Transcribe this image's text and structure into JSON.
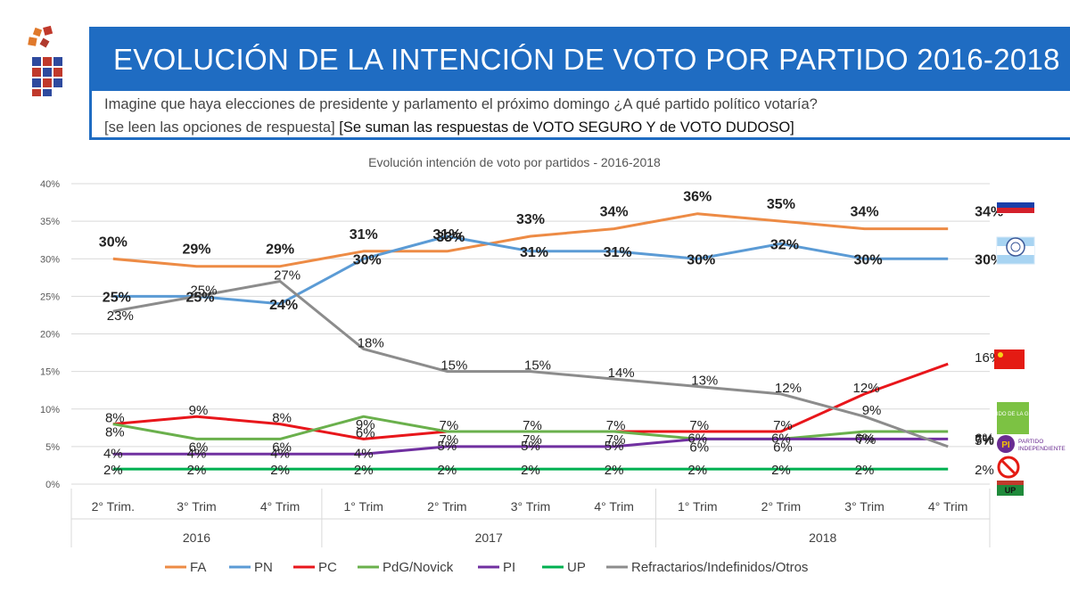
{
  "header": {
    "title": "EVOLUCIÓN DE LA INTENCIÓN DE VOTO POR PARTIDO 2016-2018",
    "question": "Imagine que haya elecciones de presidente y parlamento el próximo domingo ¿A qué partido político votaría?",
    "note_read": "[se leen las opciones de respuesta]",
    "note_sum": "[Se suman las respuestas de VOTO SEGURO Y de VOTO DUDOSO]"
  },
  "logos": {
    "pi_badge": "PI",
    "pi_text_1": "PARTIDO",
    "pi_text_2": "INDEPENDIENTE",
    "pdg_text": "PARTIDO DE LA GENTE",
    "up_text": "UP"
  },
  "chart_data": {
    "type": "line",
    "title": "Evolución intención de voto por partidos - 2016-2018",
    "categories": [
      "2° Trim.",
      "3° Trim",
      "4° Trim",
      "1° Trim",
      "2° Trim",
      "3° Trim",
      "4° Trim",
      "1° Trim",
      "2° Trim",
      "3° Trim",
      "4° Trim"
    ],
    "year_groups": [
      {
        "label": "2016",
        "start": 0,
        "end": 2
      },
      {
        "label": "2017",
        "start": 3,
        "end": 6
      },
      {
        "label": "2018",
        "start": 7,
        "end": 10
      }
    ],
    "yticks": [
      "0%",
      "5%",
      "10%",
      "15%",
      "20%",
      "25%",
      "30%",
      "35%",
      "40%"
    ],
    "ylim": [
      0,
      40
    ],
    "legend_position": "bottom",
    "series": [
      {
        "name": "FA",
        "color": "#ed8b45",
        "values": [
          30,
          29,
          29,
          31,
          31,
          33,
          34,
          36,
          35,
          34,
          34
        ],
        "labels": [
          "30%",
          "29%",
          "29%",
          "31%",
          "31%",
          "33%",
          "34%",
          "36%",
          "35%",
          "34%",
          "34%"
        ]
      },
      {
        "name": "PN",
        "color": "#5b9bd5",
        "values": [
          25,
          25,
          24,
          30,
          33,
          31,
          31,
          30,
          32,
          30,
          30
        ],
        "labels": [
          "25%",
          "25%",
          "24%",
          "30%",
          "33%",
          "31%",
          "31%",
          "30%",
          "32%",
          "30%",
          "30%"
        ]
      },
      {
        "name": "PC",
        "color": "#e8161b",
        "values": [
          8,
          9,
          8,
          6,
          7,
          7,
          7,
          7,
          7,
          12,
          16
        ],
        "labels": [
          "8%",
          "9%",
          "8%",
          "6%",
          "7%",
          "7%",
          "7%",
          "7%",
          "7%",
          "12%",
          "16%"
        ]
      },
      {
        "name": "PdG/Novick",
        "color": "#6ab04c",
        "values": [
          8,
          6,
          6,
          9,
          7,
          7,
          7,
          6,
          6,
          7,
          7
        ],
        "labels": [
          "8%",
          "6%",
          "6%",
          "9%",
          "7%",
          "7%",
          "7%",
          "6%",
          "6%",
          "7%",
          "7%"
        ]
      },
      {
        "name": "PI",
        "color": "#7030a0",
        "values": [
          4,
          4,
          4,
          4,
          5,
          5,
          5,
          6,
          6,
          6,
          6
        ],
        "labels": [
          "4%",
          "4%",
          "4%",
          "4%",
          "5%",
          "5%",
          "5%",
          "6%",
          "6%",
          "6%",
          "6%"
        ]
      },
      {
        "name": "UP",
        "color": "#00b050",
        "values": [
          2,
          2,
          2,
          2,
          2,
          2,
          2,
          2,
          2,
          2,
          2
        ],
        "labels": [
          "2%",
          "2%",
          "2%",
          "2%",
          "2%",
          "2%",
          "2%",
          "2%",
          "2%",
          "2%",
          "2%"
        ]
      },
      {
        "name": "Refractarios/Indefinidos/Otros",
        "color": "#8c8c8c",
        "values": [
          23,
          25,
          27,
          18,
          15,
          15,
          14,
          13,
          12,
          9,
          5
        ],
        "labels": [
          "23%",
          "25%",
          "27%",
          "18%",
          "15%",
          "15%",
          "14%",
          "13%",
          "12%",
          "9%",
          "5%"
        ]
      }
    ]
  }
}
